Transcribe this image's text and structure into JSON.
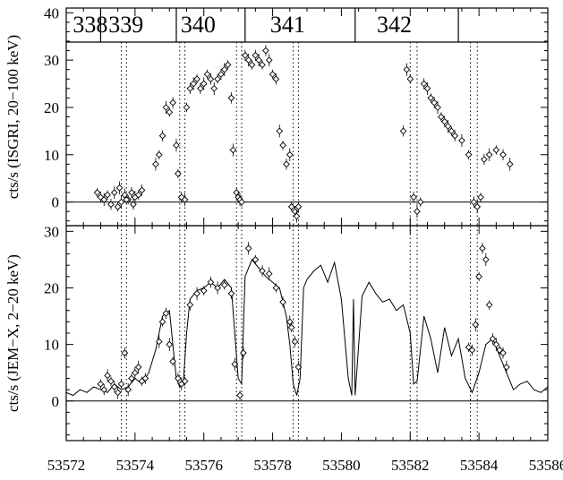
{
  "chart_data": [
    {
      "type": "scatter",
      "panel": "top",
      "ylabel": "cts/s (ISGRI, 20−100 keV)",
      "xlim": [
        53572,
        53586
      ],
      "ylim": [
        -5,
        41
      ],
      "yticks": [
        0,
        10,
        20,
        30,
        40
      ],
      "revolution_labels": [
        "338",
        "339",
        "340",
        "341",
        "342"
      ],
      "revolution_boundaries": [
        53573.0,
        53575.2,
        53577.2,
        53580.4,
        53583.4
      ],
      "vlines": [
        53573.6,
        53573.75,
        53575.3,
        53575.45,
        53576.95,
        53577.1,
        53578.6,
        53578.75,
        53582.0,
        53582.2,
        53583.75,
        53583.95
      ],
      "zero_line": true,
      "series": [
        {
          "marker": "diamond",
          "x": [
            53572.9,
            53573.0,
            53573.1,
            53573.2,
            53573.3,
            53573.4,
            53573.5,
            53573.6,
            53573.7,
            53573.8,
            53573.9,
            53574.0,
            53574.1,
            53574.2,
            53573.55,
            53573.75,
            53573.95,
            53574.6,
            53574.7,
            53574.8,
            53574.9,
            53575.0,
            53575.1,
            53575.2,
            53575.25,
            53575.35,
            53575.45,
            53575.5,
            53575.6,
            53575.7,
            53575.8,
            53575.9,
            53576.0,
            53576.1,
            53576.2,
            53576.3,
            53576.4,
            53576.5,
            53576.6,
            53576.7,
            53576.8,
            53576.85,
            53576.95,
            53577.0,
            53577.05,
            53577.1,
            53577.2,
            53577.3,
            53577.4,
            53577.5,
            53577.6,
            53577.7,
            53577.8,
            53577.9,
            53578.0,
            53578.1,
            53578.2,
            53578.3,
            53578.4,
            53578.5,
            53578.55,
            53578.65,
            53578.7,
            53578.75,
            53581.8,
            53581.9,
            53582.0,
            53582.1,
            53582.2,
            53582.3,
            53582.4,
            53582.5,
            53582.6,
            53582.7,
            53582.8,
            53582.9,
            53583.0,
            53583.1,
            53583.2,
            53583.3,
            53583.5,
            53583.7,
            53583.85,
            53583.95,
            53584.05,
            53584.15,
            53584.3,
            53584.5,
            53584.7,
            53584.9
          ],
          "y": [
            2,
            1,
            0.5,
            1.5,
            -0.5,
            2,
            -1,
            0,
            1.5,
            0.5,
            2,
            1,
            1.5,
            2.5,
            3,
            0.5,
            -0.5,
            8,
            10,
            14,
            20,
            19,
            21,
            12,
            6,
            1,
            0.5,
            20,
            24,
            25,
            26,
            24,
            25,
            27,
            26,
            24,
            26,
            27,
            28,
            29,
            22,
            11,
            2,
            1,
            0.5,
            0,
            31,
            30,
            29,
            31,
            30,
            29,
            32,
            30,
            27,
            26,
            15,
            12,
            8,
            10,
            -1,
            -2,
            -3,
            -1,
            15,
            28,
            26,
            1,
            -2,
            0,
            25,
            24,
            22,
            21,
            20,
            18,
            17,
            16,
            15,
            14,
            13,
            10,
            0,
            -1,
            1,
            9,
            10,
            11,
            10,
            8
          ]
        }
      ]
    },
    {
      "type": "line",
      "panel": "bottom",
      "ylabel": "cts/s (JEM−X, 2−20 keV)",
      "xlim": [
        53572,
        53586
      ],
      "ylim": [
        -7,
        31
      ],
      "yticks": [
        0,
        10,
        20,
        30
      ],
      "xticks": [
        53572,
        53574,
        53576,
        53578,
        53580,
        53582,
        53584,
        53586
      ],
      "vlines": [
        53573.6,
        53573.75,
        53575.3,
        53575.45,
        53576.95,
        53577.1,
        53578.6,
        53578.75,
        53582.0,
        53582.2,
        53583.75,
        53583.95
      ],
      "zero_line": true,
      "series": [
        {
          "style": "line",
          "x": [
            53572.0,
            53572.2,
            53572.4,
            53572.6,
            53572.8,
            53573.0,
            53573.2,
            53573.4,
            53573.6,
            53573.8,
            53574.0,
            53574.2,
            53574.4,
            53574.6,
            53574.8,
            53575.0,
            53575.1,
            53575.2,
            53575.3,
            53575.4,
            53575.5,
            53575.6,
            53575.8,
            53576.0,
            53576.2,
            53576.4,
            53576.6,
            53576.8,
            53576.9,
            53577.0,
            53577.1,
            53577.2,
            53577.4,
            53577.6,
            53577.8,
            53578.0,
            53578.2,
            53578.4,
            53578.5,
            53578.6,
            53578.7,
            53578.8,
            53578.9,
            53579.0,
            53579.2,
            53579.4,
            53579.6,
            53579.8,
            53580.0,
            53580.2,
            53580.3,
            53580.35,
            53580.4,
            53580.6,
            53580.8,
            53581.0,
            53581.2,
            53581.4,
            53581.6,
            53581.8,
            53582.0,
            53582.1,
            53582.2,
            53582.4,
            53582.6,
            53582.8,
            53583.0,
            53583.2,
            53583.4,
            53583.6,
            53583.8,
            53584.0,
            53584.2,
            53584.4,
            53584.6,
            53584.8,
            53585.0,
            53585.2,
            53585.4,
            53585.6,
            53585.8,
            53586.0
          ],
          "y": [
            1.5,
            1.0,
            2.0,
            1.5,
            2.5,
            2.0,
            1.5,
            3.0,
            2.0,
            2.5,
            4.0,
            3.0,
            5.0,
            9.0,
            15.0,
            16.0,
            10.0,
            4.0,
            2.5,
            3.0,
            12.0,
            18.0,
            19.5,
            20.0,
            21.0,
            20.0,
            21.5,
            20.0,
            12.0,
            4.0,
            3.0,
            22.0,
            25.0,
            23.5,
            22.0,
            21.0,
            20.0,
            15.0,
            10.0,
            3.0,
            1.0,
            4.0,
            20.0,
            21.5,
            23.0,
            24.0,
            21.0,
            24.5,
            18.0,
            4.0,
            1.0,
            18.0,
            1.0,
            18.5,
            21.0,
            19.0,
            17.5,
            18.0,
            16.0,
            17.0,
            12.0,
            3.0,
            3.5,
            15.0,
            11.0,
            5.0,
            13.0,
            8.0,
            11.0,
            4.0,
            1.5,
            5.0,
            10.0,
            11.0,
            8.0,
            5.0,
            2.0,
            3.0,
            3.5,
            2.0,
            1.5,
            2.5
          ]
        },
        {
          "marker": "diamond",
          "x": [
            53573.0,
            53573.1,
            53573.2,
            53573.3,
            53573.4,
            53573.5,
            53573.6,
            53573.7,
            53573.8,
            53573.9,
            53574.0,
            53574.1,
            53574.2,
            53574.3,
            53574.7,
            53574.8,
            53574.9,
            53575.0,
            53575.1,
            53575.25,
            53575.35,
            53575.45,
            53575.6,
            53575.8,
            53576.0,
            53576.2,
            53576.4,
            53576.6,
            53576.8,
            53576.9,
            53577.05,
            53577.15,
            53577.3,
            53577.5,
            53577.7,
            53577.9,
            53578.1,
            53578.3,
            53578.5,
            53578.55,
            53578.65,
            53578.75,
            53583.7,
            53583.8,
            53583.9,
            53584.0,
            53584.1,
            53584.2,
            53584.3,
            53584.4,
            53584.5,
            53584.6,
            53584.7,
            53584.8
          ],
          "y": [
            3.0,
            2.0,
            4.5,
            3.5,
            2.5,
            1.5,
            3.0,
            8.5,
            2.0,
            4.0,
            5.0,
            6.0,
            3.5,
            4.0,
            10.5,
            14.0,
            15.5,
            10.0,
            7.0,
            4.0,
            3.0,
            3.5,
            17.0,
            19.0,
            19.5,
            21.0,
            20.0,
            20.5,
            19.0,
            6.5,
            1.0,
            8.5,
            27.0,
            25.0,
            23.0,
            22.5,
            20.0,
            17.5,
            14.0,
            13.0,
            10.5,
            6.0,
            9.5,
            9.0,
            13.5,
            22.0,
            27.0,
            25.0,
            17.0,
            11.0,
            10.0,
            9.0,
            8.5,
            6.0
          ]
        }
      ]
    }
  ]
}
